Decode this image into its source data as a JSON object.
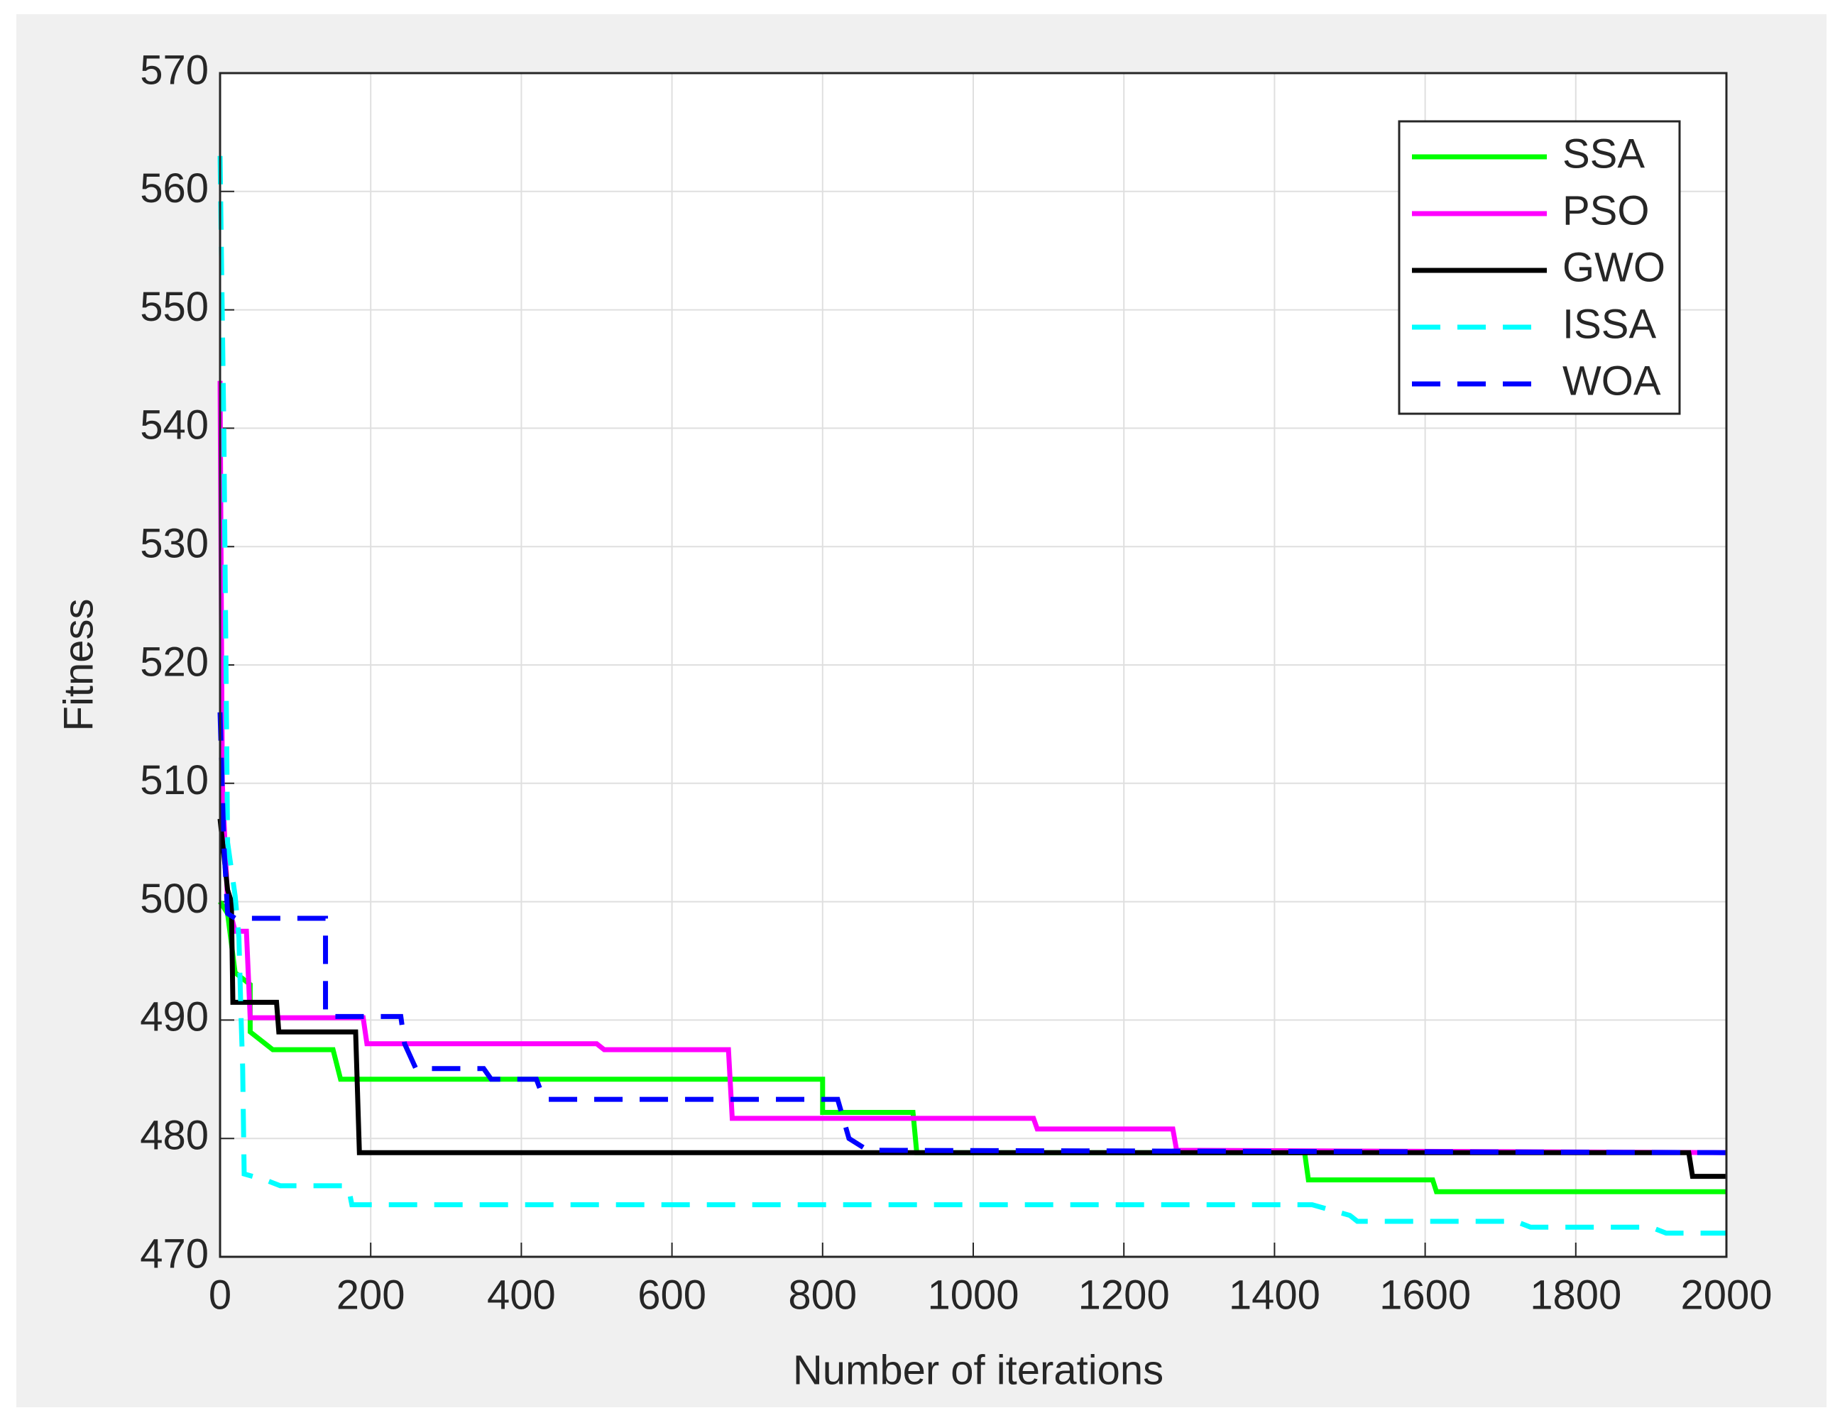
{
  "chart_data": {
    "type": "line",
    "xlabel": "Number of iterations",
    "ylabel": "Fitness",
    "xlim": [
      0,
      2000
    ],
    "ylim": [
      470,
      570
    ],
    "xticks": [
      0,
      200,
      400,
      600,
      800,
      1000,
      1200,
      1400,
      1600,
      1800,
      2000
    ],
    "yticks": [
      470,
      480,
      490,
      500,
      510,
      520,
      530,
      540,
      550,
      560,
      570
    ],
    "grid": true,
    "legend": "top-right",
    "series": [
      {
        "name": "SSA",
        "color": "#00ff00",
        "dash": "solid",
        "x": [
          0,
          10,
          20,
          40,
          40,
          60,
          70,
          150,
          160,
          800,
          800,
          920,
          925,
          1440,
          1445,
          1610,
          1615,
          2000
        ],
        "values": [
          500,
          499,
          494,
          493,
          489,
          488,
          487.5,
          487.5,
          485,
          485,
          482.2,
          482.2,
          478.8,
          478.8,
          476.5,
          476.5,
          475.5,
          475.5
        ]
      },
      {
        "name": "PSO",
        "color": "#ff00ff",
        "dash": "solid",
        "x": [
          0,
          3,
          10,
          20,
          35,
          40,
          190,
          195,
          500,
          510,
          675,
          680,
          1080,
          1085,
          1265,
          1270,
          2000
        ],
        "values": [
          544,
          510,
          500,
          497.5,
          497.5,
          490.2,
          490.2,
          488,
          488,
          487.5,
          487.5,
          481.7,
          481.7,
          480.8,
          480.8,
          479,
          478.8
        ]
      },
      {
        "name": "GWO",
        "color": "#000000",
        "dash": "solid",
        "x": [
          0,
          10,
          15,
          17,
          75,
          78,
          180,
          185,
          1950,
          1955,
          2000
        ],
        "values": [
          507,
          501,
          500,
          491.5,
          491.5,
          489,
          489,
          478.8,
          478.8,
          476.8,
          476.8
        ]
      },
      {
        "name": "ISSA",
        "color": "#00ffff",
        "dash": "dashed",
        "x": [
          0,
          5,
          10,
          20,
          25,
          28,
          30,
          32,
          60,
          80,
          170,
          175,
          1450,
          1500,
          1510,
          1720,
          1740,
          1900,
          1920,
          2000
        ],
        "values": [
          563,
          540,
          505,
          500.5,
          497,
          490,
          486,
          477,
          476.5,
          476,
          476,
          474.4,
          474.4,
          473.5,
          473,
          473,
          472.5,
          472.5,
          472,
          472
        ]
      },
      {
        "name": "WOA",
        "color": "#0000ff",
        "dash": "dashed",
        "x": [
          0,
          5,
          10,
          20,
          140,
          140,
          240,
          245,
          260,
          350,
          360,
          420,
          430,
          820,
          835,
          860,
          2000
        ],
        "values": [
          516,
          505,
          499,
          498.6,
          498.6,
          490.3,
          490.3,
          488,
          485.9,
          485.9,
          485,
          485,
          483.3,
          483.3,
          480,
          479,
          478.8
        ]
      }
    ]
  }
}
